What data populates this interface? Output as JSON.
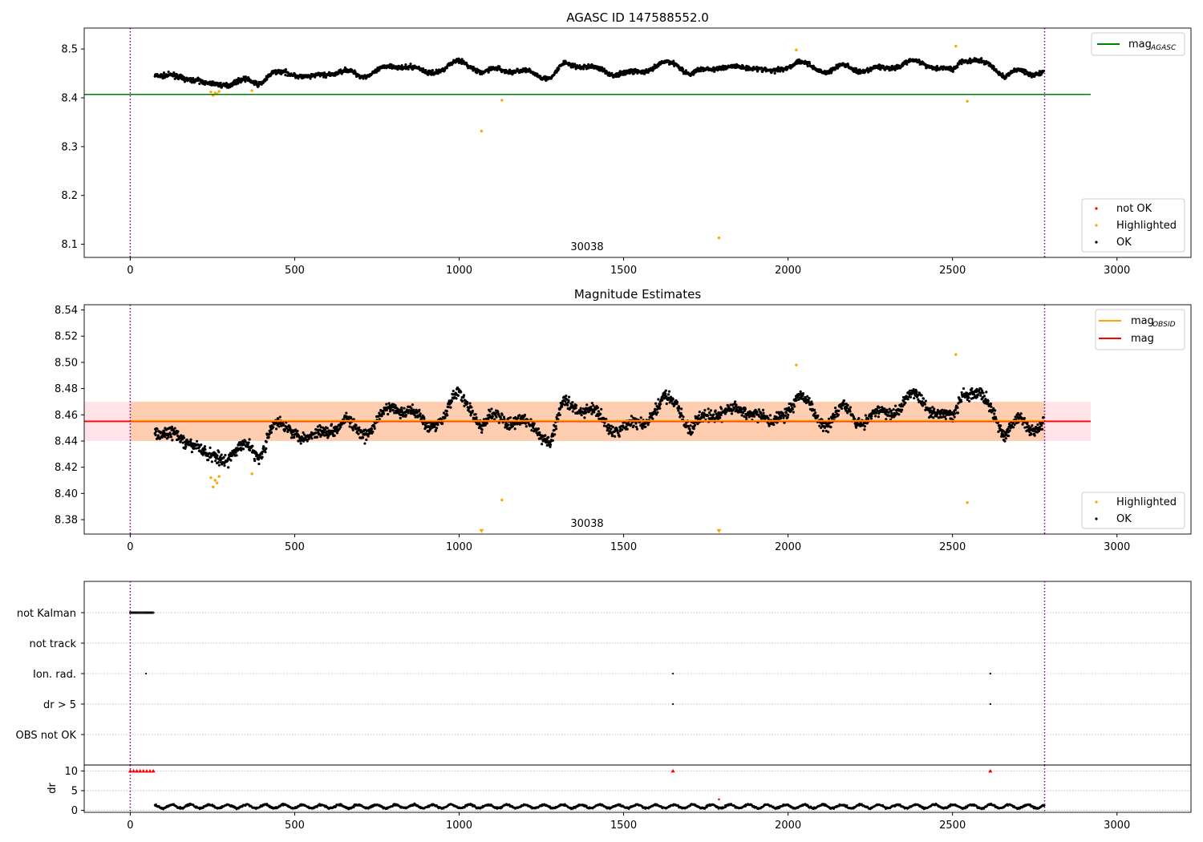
{
  "figure": {
    "title": "AGASC ID 147588552.0",
    "middle_title": "Magnitude Estimates",
    "obsid_label": "30038"
  },
  "chart_data": [
    {
      "type": "scatter",
      "title": "AGASC ID 147588552.0",
      "xlim": [
        -140,
        3225
      ],
      "ylim": [
        8.073,
        8.543
      ],
      "x_ticks": [
        0,
        500,
        1000,
        1500,
        2000,
        2500,
        3000
      ],
      "y_ticks": [
        8.1,
        8.2,
        8.3,
        8.4,
        8.5
      ],
      "y_tick_labels": [
        "8.1",
        "8.2",
        "8.3",
        "8.4",
        "8.5"
      ],
      "grid": false,
      "legend_upper": {
        "placement": "top-right",
        "entries": [
          {
            "label": "mag",
            "sub": "AGASC",
            "color": "#008000"
          }
        ]
      },
      "legend_lower": {
        "placement": "bottom-right",
        "entries": [
          {
            "label": "not OK",
            "color": "#ff0000"
          },
          {
            "label": "Highlighted",
            "color": "#ffa500"
          },
          {
            "label": "OK",
            "color": "#000000"
          }
        ]
      },
      "annotation": "30038",
      "vlines": [
        0,
        2780
      ],
      "hline": {
        "y": 8.407,
        "x_range": [
          -140,
          2920
        ],
        "color": "#008000"
      },
      "series": [
        {
          "name": "OK",
          "color": "#000000",
          "x": [
            75,
            150,
            200,
            235,
            300,
            350,
            390,
            430,
            500,
            550,
            600,
            650,
            700,
            750,
            800,
            850,
            900,
            950,
            1000,
            1040,
            1070,
            1120,
            1170,
            1230,
            1280,
            1320,
            1380,
            1440,
            1470,
            1520,
            1560,
            1620,
            1660,
            1700,
            1740,
            1800,
            1850,
            1900,
            1950,
            1980,
            2030,
            2080,
            2120,
            2170,
            2230,
            2280,
            2330,
            2380,
            2420,
            2460,
            2500,
            2530,
            2570,
            2620,
            2660,
            2700,
            2740,
            2778
          ],
          "y": [
            8.45,
            8.44,
            8.44,
            8.425,
            8.43,
            8.435,
            8.43,
            8.45,
            8.45,
            8.44,
            8.45,
            8.455,
            8.445,
            8.455,
            8.465,
            8.465,
            8.45,
            8.46,
            8.475,
            8.465,
            8.45,
            8.46,
            8.455,
            8.45,
            8.44,
            8.47,
            8.465,
            8.455,
            8.45,
            8.45,
            8.455,
            8.47,
            8.47,
            8.45,
            8.455,
            8.465,
            8.46,
            8.465,
            8.45,
            8.46,
            8.475,
            8.46,
            8.455,
            8.465,
            8.455,
            8.46,
            8.465,
            8.475,
            8.47,
            8.46,
            8.455,
            8.48,
            8.475,
            8.465,
            8.445,
            8.455,
            8.45,
            8.455
          ]
        },
        {
          "name": "Highlighted",
          "color": "#ffa500",
          "x": [
            245,
            252,
            258,
            264,
            270,
            370,
            1068,
            1130,
            1790,
            2025,
            2510,
            2545
          ],
          "y": [
            8.412,
            8.405,
            8.41,
            8.408,
            8.413,
            8.415,
            8.332,
            8.395,
            8.113,
            8.498,
            8.506,
            8.393
          ]
        }
      ]
    },
    {
      "type": "scatter",
      "title": "Magnitude Estimates",
      "xlim": [
        -140,
        3225
      ],
      "ylim": [
        8.369,
        8.544
      ],
      "x_ticks": [
        0,
        500,
        1000,
        1500,
        2000,
        2500,
        3000
      ],
      "y_ticks": [
        8.38,
        8.4,
        8.42,
        8.44,
        8.46,
        8.48,
        8.5,
        8.52,
        8.54
      ],
      "y_tick_labels": [
        "8.38",
        "8.40",
        "8.42",
        "8.44",
        "8.46",
        "8.48",
        "8.50",
        "8.52",
        "8.54"
      ],
      "grid": false,
      "legend_upper": {
        "placement": "top-right",
        "entries": [
          {
            "label": "mag",
            "sub": "OBSID",
            "color": "#ffa500"
          },
          {
            "label": "mag",
            "color": "#ff0000"
          }
        ]
      },
      "legend_lower": {
        "placement": "bottom-right",
        "entries": [
          {
            "label": "Highlighted",
            "color": "#ffa500"
          },
          {
            "label": "OK",
            "color": "#000000"
          }
        ]
      },
      "annotation": "30038",
      "vlines": [
        0,
        2780
      ],
      "mag_obsid": 8.4555,
      "mag": 8.455,
      "mag_band": [
        8.44,
        8.47
      ],
      "series": [
        {
          "name": "OK",
          "color": "#000000",
          "x": [
            75,
            150,
            200,
            235,
            300,
            350,
            390,
            430,
            500,
            550,
            600,
            650,
            700,
            750,
            800,
            850,
            900,
            950,
            1000,
            1040,
            1070,
            1120,
            1170,
            1230,
            1280,
            1320,
            1380,
            1440,
            1470,
            1520,
            1560,
            1620,
            1660,
            1700,
            1740,
            1800,
            1850,
            1900,
            1950,
            1980,
            2030,
            2080,
            2120,
            2170,
            2230,
            2280,
            2330,
            2380,
            2420,
            2460,
            2500,
            2530,
            2570,
            2620,
            2660,
            2700,
            2740,
            2778
          ],
          "y": [
            8.45,
            8.44,
            8.44,
            8.425,
            8.43,
            8.435,
            8.43,
            8.45,
            8.45,
            8.44,
            8.45,
            8.455,
            8.445,
            8.455,
            8.465,
            8.465,
            8.45,
            8.46,
            8.475,
            8.465,
            8.45,
            8.46,
            8.455,
            8.45,
            8.44,
            8.47,
            8.465,
            8.455,
            8.45,
            8.45,
            8.455,
            8.47,
            8.47,
            8.45,
            8.455,
            8.465,
            8.46,
            8.465,
            8.45,
            8.46,
            8.475,
            8.46,
            8.455,
            8.465,
            8.455,
            8.46,
            8.465,
            8.475,
            8.47,
            8.46,
            8.455,
            8.48,
            8.475,
            8.465,
            8.445,
            8.455,
            8.45,
            8.455
          ]
        },
        {
          "name": "Highlighted",
          "color": "#ffa500",
          "x": [
            245,
            252,
            258,
            264,
            270,
            370,
            1130,
            2025,
            2510,
            2545
          ],
          "y": [
            8.412,
            8.405,
            8.41,
            8.408,
            8.413,
            8.415,
            8.395,
            8.498,
            8.506,
            8.393
          ]
        },
        {
          "name": "Highlighted (off scale)",
          "color": "#ffa500",
          "marker": "triangle-down",
          "x": [
            1068,
            1790
          ],
          "y": [
            8.371,
            8.371
          ]
        }
      ]
    },
    {
      "type": "scatter",
      "title": "",
      "xlim": [
        -140,
        3225
      ],
      "x_ticks": [
        0,
        500,
        1000,
        1500,
        2000,
        2500,
        3000
      ],
      "categories": [
        "not Kalman",
        "not track",
        "Ion. rad.",
        "dr > 5",
        "OBS not OK"
      ],
      "grid": "horizontal dotted",
      "vlines": [
        0,
        2780
      ],
      "flags": {
        "not Kalman": {
          "x_range": [
            0,
            70
          ]
        },
        "not track": {
          "x": []
        },
        "Ion. rad.": {
          "x": [
            48,
            1650,
            2615
          ]
        },
        "dr > 5": {
          "x": [
            1650,
            2615
          ]
        },
        "OBS not OK": {
          "x": []
        }
      }
    },
    {
      "type": "scatter",
      "title": "",
      "ylabel": "dr",
      "xlim": [
        -140,
        3225
      ],
      "ylim": [
        -0.5,
        11.5
      ],
      "y_ticks": [
        0,
        5,
        10
      ],
      "y_tick_labels": [
        "0",
        "5",
        "10"
      ],
      "x_ticks": [
        0,
        500,
        1000,
        1500,
        2000,
        2500,
        3000
      ],
      "x_tick_labels": [
        "0",
        "500",
        "1000",
        "1500",
        "2000",
        "2500",
        "3000"
      ],
      "grid": "horizontal dotted",
      "vlines": [
        0,
        2780
      ],
      "series": [
        {
          "name": "dr",
          "color": "#000000",
          "x_range": [
            75,
            2780
          ],
          "typical": [
            0.5,
            1.5
          ]
        },
        {
          "name": "dr > 5",
          "color": "#ff0000",
          "marker": "triangle-up",
          "x": [
            0,
            10,
            20,
            30,
            40,
            50,
            60,
            70,
            1650,
            2615
          ],
          "y": [
            10,
            10,
            10,
            10,
            10,
            10,
            10,
            10,
            10,
            10
          ]
        },
        {
          "name": "outlier",
          "color": "#ff0000",
          "x": [
            1790
          ],
          "y": [
            2.8
          ]
        }
      ]
    }
  ]
}
